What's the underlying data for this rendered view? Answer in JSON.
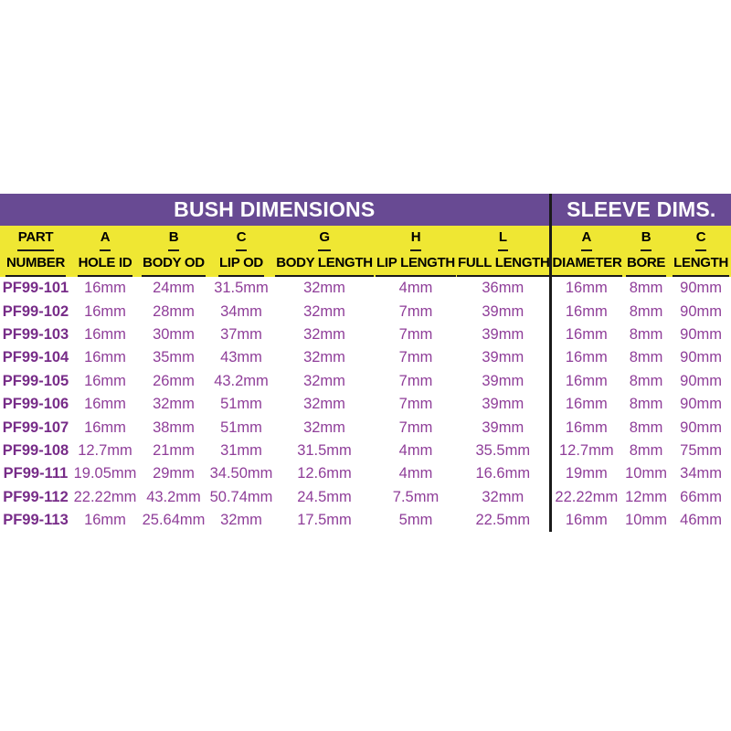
{
  "table": {
    "group_headers": [
      {
        "label": "BUSH DIMENSIONS",
        "colspan": 7
      },
      {
        "label": "SLEEVE DIMS.",
        "colspan": 3
      }
    ],
    "columns": [
      {
        "letter": "PART",
        "name": "NUMBER"
      },
      {
        "letter": "A",
        "name": "HOLE ID"
      },
      {
        "letter": "B",
        "name": "BODY OD"
      },
      {
        "letter": "C",
        "name": "LIP OD"
      },
      {
        "letter": "G",
        "name": "BODY LENGTH"
      },
      {
        "letter": "H",
        "name": "LIP LENGTH"
      },
      {
        "letter": "L",
        "name": "FULL LENGTH"
      },
      {
        "letter": "A",
        "name": "DIAMETER"
      },
      {
        "letter": "B",
        "name": "BORE"
      },
      {
        "letter": "C",
        "name": "LENGTH"
      }
    ],
    "rows": [
      [
        "PF99-101",
        "16mm",
        "24mm",
        "31.5mm",
        "32mm",
        "4mm",
        "36mm",
        "16mm",
        "8mm",
        "90mm"
      ],
      [
        "PF99-102",
        "16mm",
        "28mm",
        "34mm",
        "32mm",
        "7mm",
        "39mm",
        "16mm",
        "8mm",
        "90mm"
      ],
      [
        "PF99-103",
        "16mm",
        "30mm",
        "37mm",
        "32mm",
        "7mm",
        "39mm",
        "16mm",
        "8mm",
        "90mm"
      ],
      [
        "PF99-104",
        "16mm",
        "35mm",
        "43mm",
        "32mm",
        "7mm",
        "39mm",
        "16mm",
        "8mm",
        "90mm"
      ],
      [
        "PF99-105",
        "16mm",
        "26mm",
        "43.2mm",
        "32mm",
        "7mm",
        "39mm",
        "16mm",
        "8mm",
        "90mm"
      ],
      [
        "PF99-106",
        "16mm",
        "32mm",
        "51mm",
        "32mm",
        "7mm",
        "39mm",
        "16mm",
        "8mm",
        "90mm"
      ],
      [
        "PF99-107",
        "16mm",
        "38mm",
        "51mm",
        "32mm",
        "7mm",
        "39mm",
        "16mm",
        "8mm",
        "90mm"
      ],
      [
        "PF99-108",
        "12.7mm",
        "21mm",
        "31mm",
        "31.5mm",
        "4mm",
        "35.5mm",
        "12.7mm",
        "8mm",
        "75mm"
      ],
      [
        "PF99-111",
        "19.05mm",
        "29mm",
        "34.50mm",
        "12.6mm",
        "4mm",
        "16.6mm",
        "19mm",
        "10mm",
        "34mm"
      ],
      [
        "PF99-112",
        "22.22mm",
        "43.2mm",
        "50.74mm",
        "24.5mm",
        "7.5mm",
        "32mm",
        "22.22mm",
        "12mm",
        "66mm"
      ],
      [
        "PF99-113",
        "16mm",
        "25.64mm",
        "32mm",
        "17.5mm",
        "5mm",
        "22.5mm",
        "16mm",
        "10mm",
        "46mm"
      ]
    ],
    "colors": {
      "band_background": "#684A93",
      "band_text": "#FFFFFF",
      "header_background": "#EFE733",
      "header_text": "#000000",
      "part_number_text": "#772C88",
      "value_text": "#8F3E99",
      "divider": "#1A1A1A",
      "page_background": "#FFFFFF"
    }
  }
}
